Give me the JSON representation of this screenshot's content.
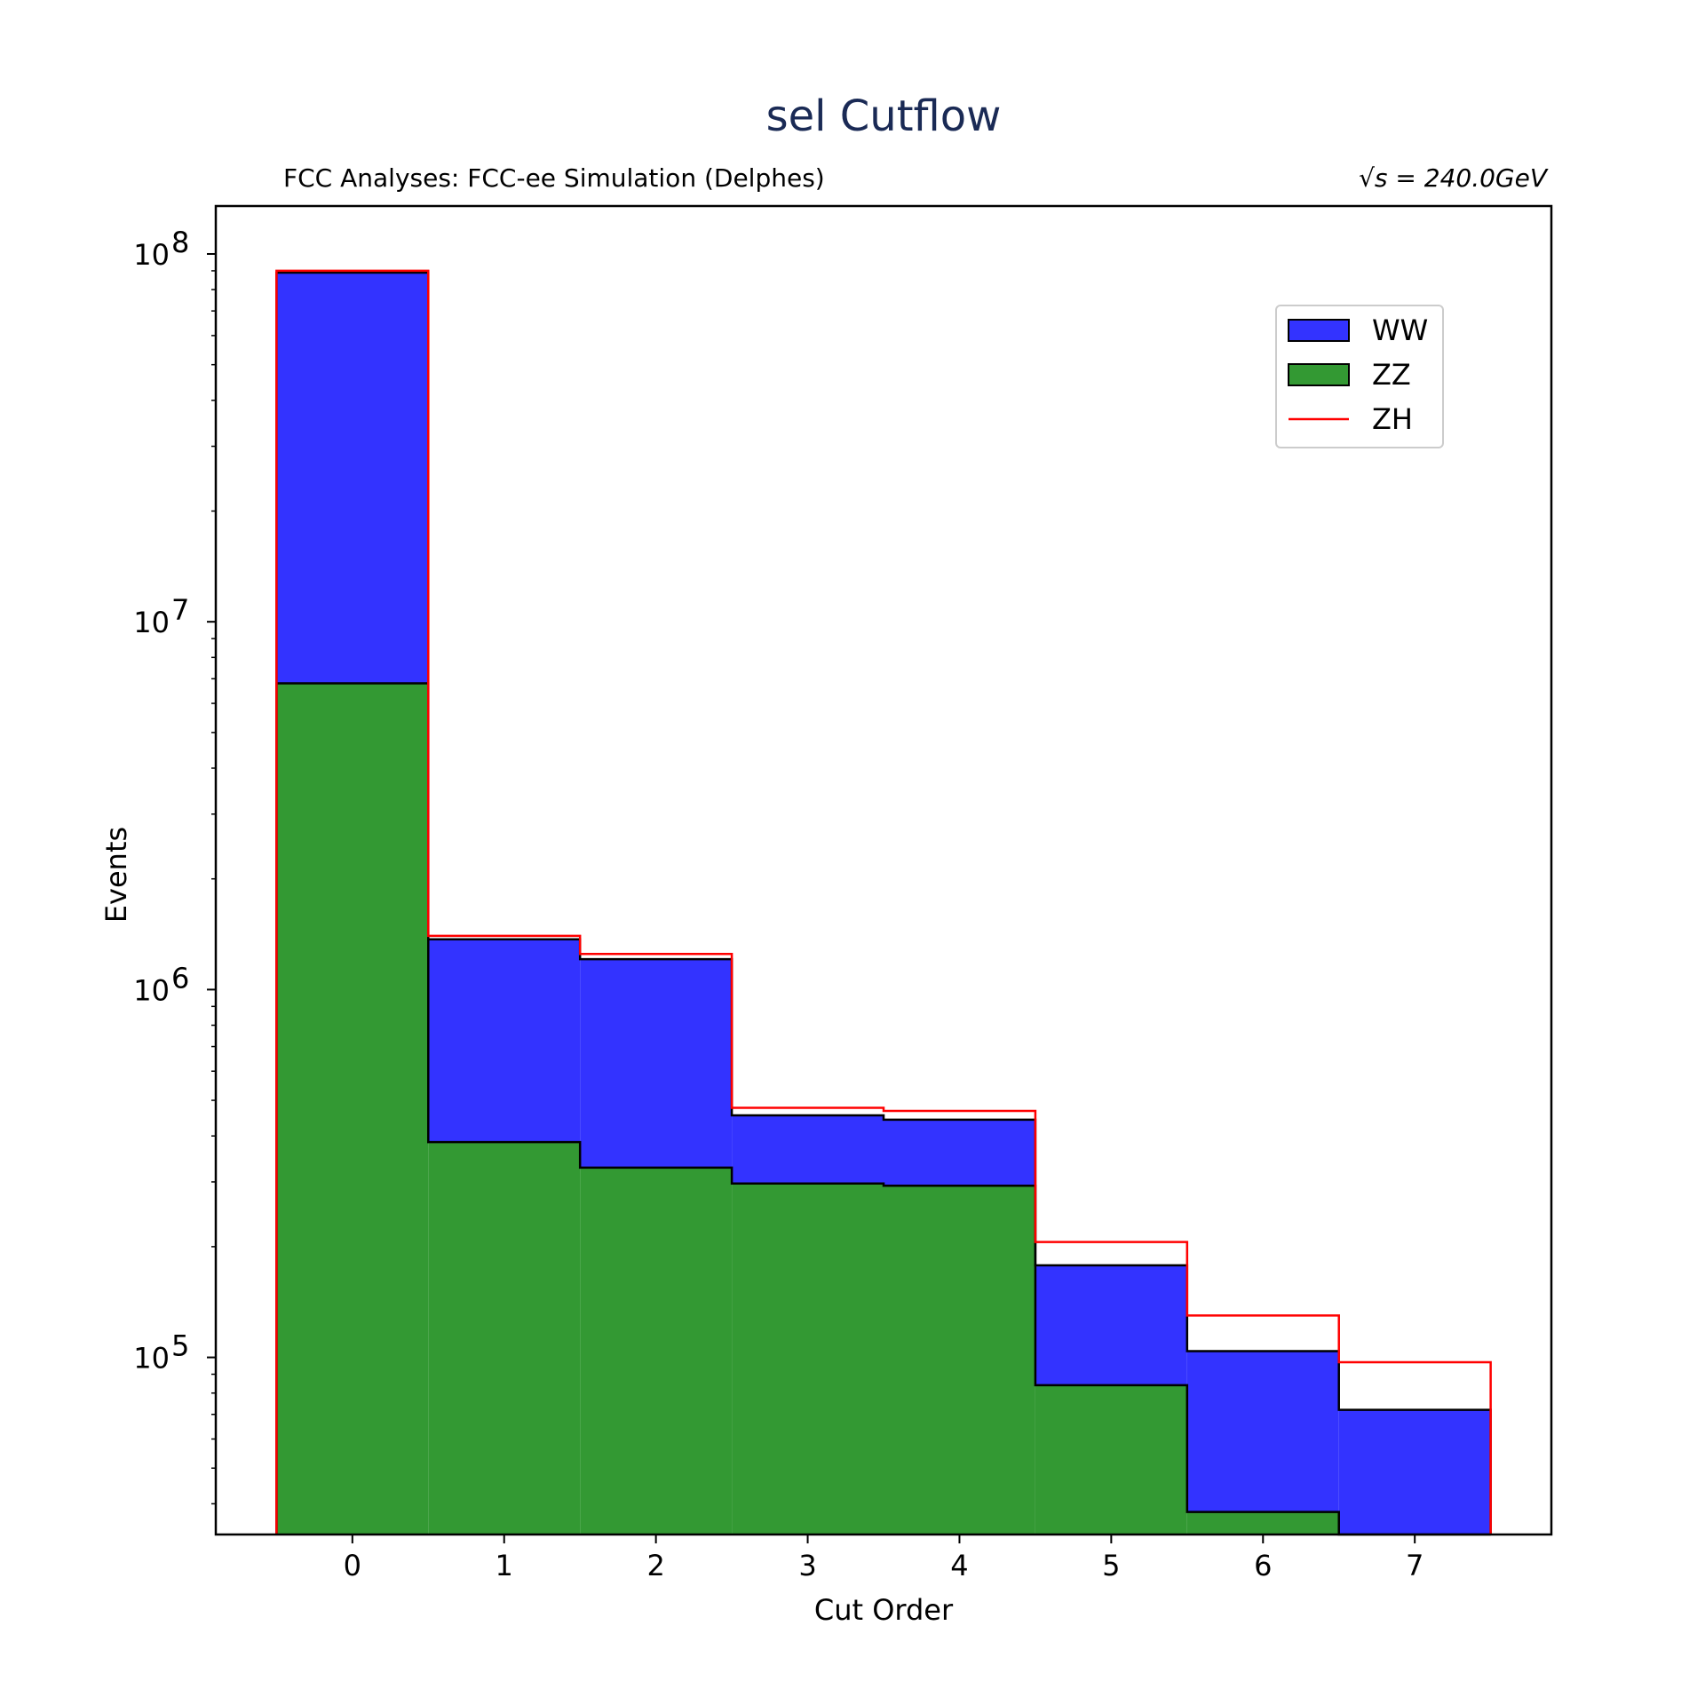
{
  "chart_data": {
    "type": "bar",
    "stacked": true,
    "title": "sel Cutflow",
    "subtitle_left": "FCC Analyses: FCC-ee Simulation (Delphes)",
    "subtitle_right": "√s = 240.0GeV",
    "xlabel": "Cut Order",
    "ylabel": "Events",
    "yscale": "log",
    "xlim": [
      -0.9,
      7.9
    ],
    "ylim": [
      33000,
      135000000
    ],
    "x": [
      0,
      1,
      2,
      3,
      4,
      5,
      6,
      7
    ],
    "xticks": [
      "0",
      "1",
      "2",
      "3",
      "4",
      "5",
      "6",
      "7"
    ],
    "yticks": [
      {
        "base": "10",
        "exp": "5",
        "value": 100000
      },
      {
        "base": "10",
        "exp": "6",
        "value": 1000000
      },
      {
        "base": "10",
        "exp": "7",
        "value": 10000000
      },
      {
        "base": "10",
        "exp": "8",
        "value": 100000000
      }
    ],
    "legend_position": "top-right",
    "series": [
      {
        "name": "ZZ",
        "kind": "filled-step",
        "color": "#339933",
        "values": [
          6800000,
          385000,
          328000,
          297000,
          293000,
          84000,
          38000,
          29000
        ]
      },
      {
        "name": "WW",
        "kind": "filled-step",
        "color": "#3333ff",
        "cumulative_values": [
          89000000,
          1370000,
          1210000,
          455000,
          443000,
          178000,
          104000,
          72000
        ]
      },
      {
        "name": "ZH",
        "kind": "outline-step",
        "color": "#ff0000",
        "cumulative_values": [
          90000000,
          1400000,
          1250000,
          477000,
          468000,
          206000,
          130000,
          97000
        ]
      }
    ]
  }
}
